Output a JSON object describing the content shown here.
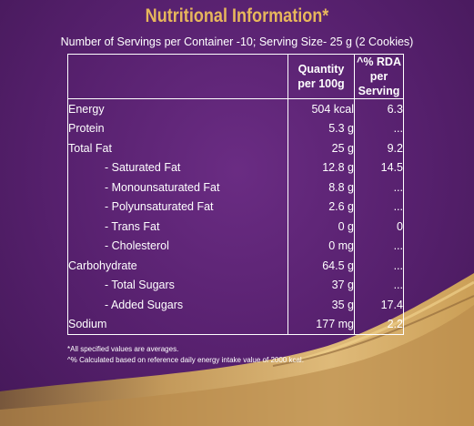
{
  "title": "Nutritional Information*",
  "subtitle": "Number of Servings per Container -10; Serving Size- 25 g (2 Cookies)",
  "table": {
    "headers": {
      "nutrient": "",
      "quantity": [
        "Quantity",
        "per 100g"
      ],
      "rda": [
        "^% RDA",
        "per Serving"
      ]
    },
    "rows": [
      {
        "name": "Energy",
        "quantity": "504 kcal",
        "rda": "6.3",
        "sub": false
      },
      {
        "name": "Protein",
        "quantity": "5.3 g",
        "rda": "...",
        "sub": false
      },
      {
        "name": "Total Fat",
        "quantity": "25 g",
        "rda": "9.2",
        "sub": false
      },
      {
        "name": "- Saturated Fat",
        "quantity": "12.8 g",
        "rda": "14.5",
        "sub": true
      },
      {
        "name": "- Monounsaturated Fat",
        "quantity": "8.8 g",
        "rda": "...",
        "sub": true
      },
      {
        "name": "- Polyunsaturated Fat",
        "quantity": "2.6 g",
        "rda": "...",
        "sub": true
      },
      {
        "name": "- Trans Fat",
        "quantity": "0 g",
        "rda": "0",
        "sub": true
      },
      {
        "name": "- Cholesterol",
        "quantity": "0 mg",
        "rda": "...",
        "sub": true
      },
      {
        "name": "Carbohydrate",
        "quantity": "64.5 g",
        "rda": "...",
        "sub": false
      },
      {
        "name": "- Total Sugars",
        "quantity": "37 g",
        "rda": "...",
        "sub": true
      },
      {
        "name": "- Added Sugars",
        "quantity": "35 g",
        "rda": "17.4",
        "sub": true
      },
      {
        "name": "Sodium",
        "quantity": "177 mg",
        "rda": "2.2",
        "sub": false
      }
    ]
  },
  "footnotes": [
    "*All specified values are averages.",
    "^% Calculated based on reference daily energy intake value of 2000 kcal."
  ],
  "colors": {
    "background": "#56206d",
    "title": "#e7b75c",
    "gold": "#d4a94f"
  }
}
